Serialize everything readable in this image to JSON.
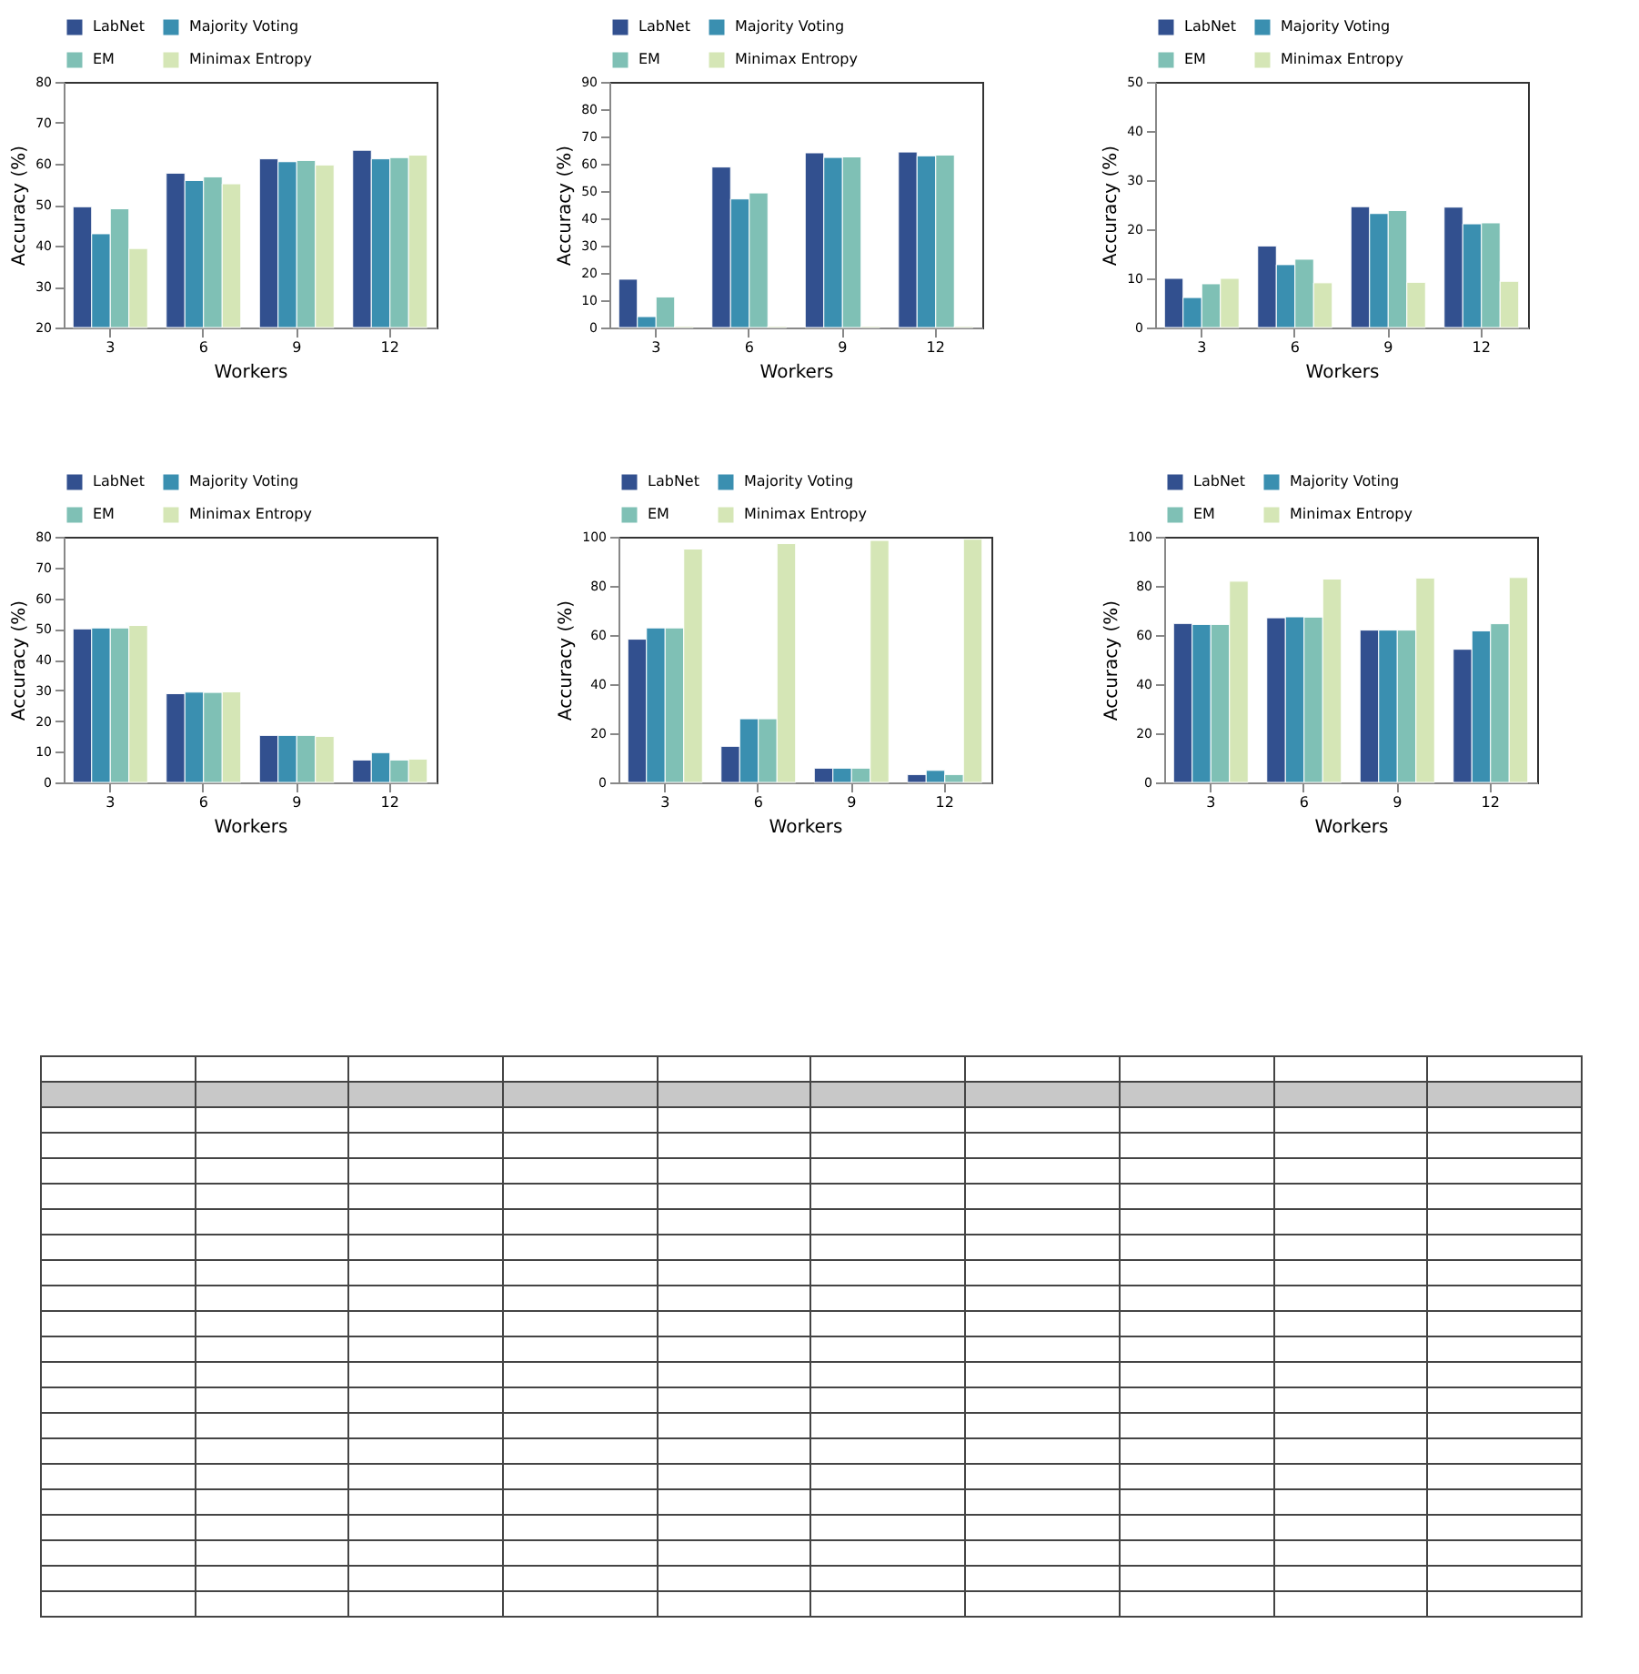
{
  "chart_data": [
    {
      "type": "bar",
      "xlabel": "Workers",
      "ylabel": "Accuracy (%)",
      "categories": [
        "3",
        "6",
        "9",
        "12"
      ],
      "ylim": [
        20,
        80
      ],
      "yticks": [
        20,
        30,
        40,
        50,
        60,
        70,
        80
      ],
      "grid": false,
      "legend": "top left",
      "series": [
        {
          "name": "LabNet",
          "color": "#32508f",
          "values": [
            49.5,
            57.7,
            61.2,
            63.3
          ]
        },
        {
          "name": "Majority Voting",
          "color": "#3a8fb0",
          "values": [
            42.9,
            55.9,
            60.5,
            61.2
          ]
        },
        {
          "name": "EM",
          "color": "#7fc0b5",
          "values": [
            49,
            56.8,
            60.8,
            61.5
          ]
        },
        {
          "name": "Minimax Entropy",
          "color": "#d5e6b6",
          "values": [
            39.3,
            55.1,
            59.7,
            62.1
          ]
        }
      ]
    },
    {
      "type": "bar",
      "xlabel": "Workers",
      "ylabel": "Accuracy (%)",
      "categories": [
        "3",
        "6",
        "9",
        "12"
      ],
      "ylim": [
        0,
        90
      ],
      "yticks": [
        0,
        10,
        20,
        30,
        40,
        50,
        60,
        70,
        80,
        90
      ],
      "grid": false,
      "legend": "top left",
      "series": [
        {
          "name": "LabNet",
          "color": "#32508f",
          "values": [
            17.7,
            58.8,
            64,
            64.3
          ]
        },
        {
          "name": "Majority Voting",
          "color": "#3a8fb0",
          "values": [
            4,
            47.1,
            62.3,
            62.9
          ]
        },
        {
          "name": "EM",
          "color": "#7fc0b5",
          "values": [
            11.2,
            49.3,
            62.5,
            63.2
          ]
        },
        {
          "name": "Minimax Entropy",
          "color": "#d5e6b6",
          "values": [
            0.5,
            0.5,
            0.5,
            0.5
          ]
        }
      ]
    },
    {
      "type": "bar",
      "xlabel": "Workers",
      "ylabel": "Accuracy (%)",
      "categories": [
        "3",
        "6",
        "9",
        "12"
      ],
      "ylim": [
        0,
        50
      ],
      "yticks": [
        0,
        10,
        20,
        30,
        40,
        50
      ],
      "grid": false,
      "legend": "top left",
      "series": [
        {
          "name": "LabNet",
          "color": "#32508f",
          "values": [
            10,
            16.6,
            24.6,
            24.5
          ]
        },
        {
          "name": "Majority Voting",
          "color": "#3a8fb0",
          "values": [
            6.1,
            12.8,
            23.2,
            21.1
          ]
        },
        {
          "name": "EM",
          "color": "#7fc0b5",
          "values": [
            8.9,
            13.9,
            23.8,
            21.3
          ]
        },
        {
          "name": "Minimax Entropy",
          "color": "#d5e6b6",
          "values": [
            10,
            9.1,
            9.2,
            9.4
          ]
        }
      ]
    },
    {
      "type": "bar",
      "xlabel": "Workers",
      "ylabel": "Accuracy (%)",
      "categories": [
        "3",
        "6",
        "9",
        "12"
      ],
      "ylim": [
        0,
        80
      ],
      "yticks": [
        0,
        10,
        20,
        30,
        40,
        50,
        60,
        70,
        80
      ],
      "grid": false,
      "legend": "top left",
      "series": [
        {
          "name": "LabNet",
          "color": "#32508f",
          "values": [
            50,
            28.9,
            15.3,
            7.3
          ]
        },
        {
          "name": "Majority Voting",
          "color": "#3a8fb0",
          "values": [
            50.3,
            29.4,
            15.3,
            9.7
          ]
        },
        {
          "name": "EM",
          "color": "#7fc0b5",
          "values": [
            50.3,
            29.3,
            15.3,
            7.3
          ]
        },
        {
          "name": "Minimax Entropy",
          "color": "#d5e6b6",
          "values": [
            51.1,
            29.5,
            15,
            7.6
          ]
        }
      ]
    },
    {
      "type": "bar",
      "xlabel": "Workers",
      "ylabel": "Accuracy (%)",
      "categories": [
        "3",
        "6",
        "9",
        "12"
      ],
      "ylim": [
        0,
        100
      ],
      "yticks": [
        0,
        20,
        40,
        60,
        80,
        100
      ],
      "grid": false,
      "legend": "top left",
      "series": [
        {
          "name": "LabNet",
          "color": "#32508f",
          "values": [
            58.3,
            14.7,
            5.8,
            3.2
          ]
        },
        {
          "name": "Majority Voting",
          "color": "#3a8fb0",
          "values": [
            62.9,
            25.9,
            5.8,
            4.9
          ]
        },
        {
          "name": "EM",
          "color": "#7fc0b5",
          "values": [
            62.9,
            25.9,
            5.8,
            3.2
          ]
        },
        {
          "name": "Minimax Entropy",
          "color": "#d5e6b6",
          "values": [
            95,
            97.2,
            98.5,
            99
          ]
        }
      ]
    },
    {
      "type": "bar",
      "xlabel": "Workers",
      "ylabel": "Accuracy (%)",
      "categories": [
        "3",
        "6",
        "9",
        "12"
      ],
      "ylim": [
        0,
        100
      ],
      "yticks": [
        0,
        20,
        40,
        60,
        80,
        100
      ],
      "grid": false,
      "legend": "top left",
      "series": [
        {
          "name": "LabNet",
          "color": "#32508f",
          "values": [
            64.7,
            67,
            62,
            54.2
          ]
        },
        {
          "name": "Majority Voting",
          "color": "#3a8fb0",
          "values": [
            64.3,
            67.4,
            62,
            61.7
          ]
        },
        {
          "name": "EM",
          "color": "#7fc0b5",
          "values": [
            64.3,
            67.3,
            62,
            64.6
          ]
        },
        {
          "name": "Minimax Entropy",
          "color": "#d5e6b6",
          "values": [
            81.9,
            82.8,
            83.2,
            83.4
          ]
        }
      ]
    }
  ]
}
